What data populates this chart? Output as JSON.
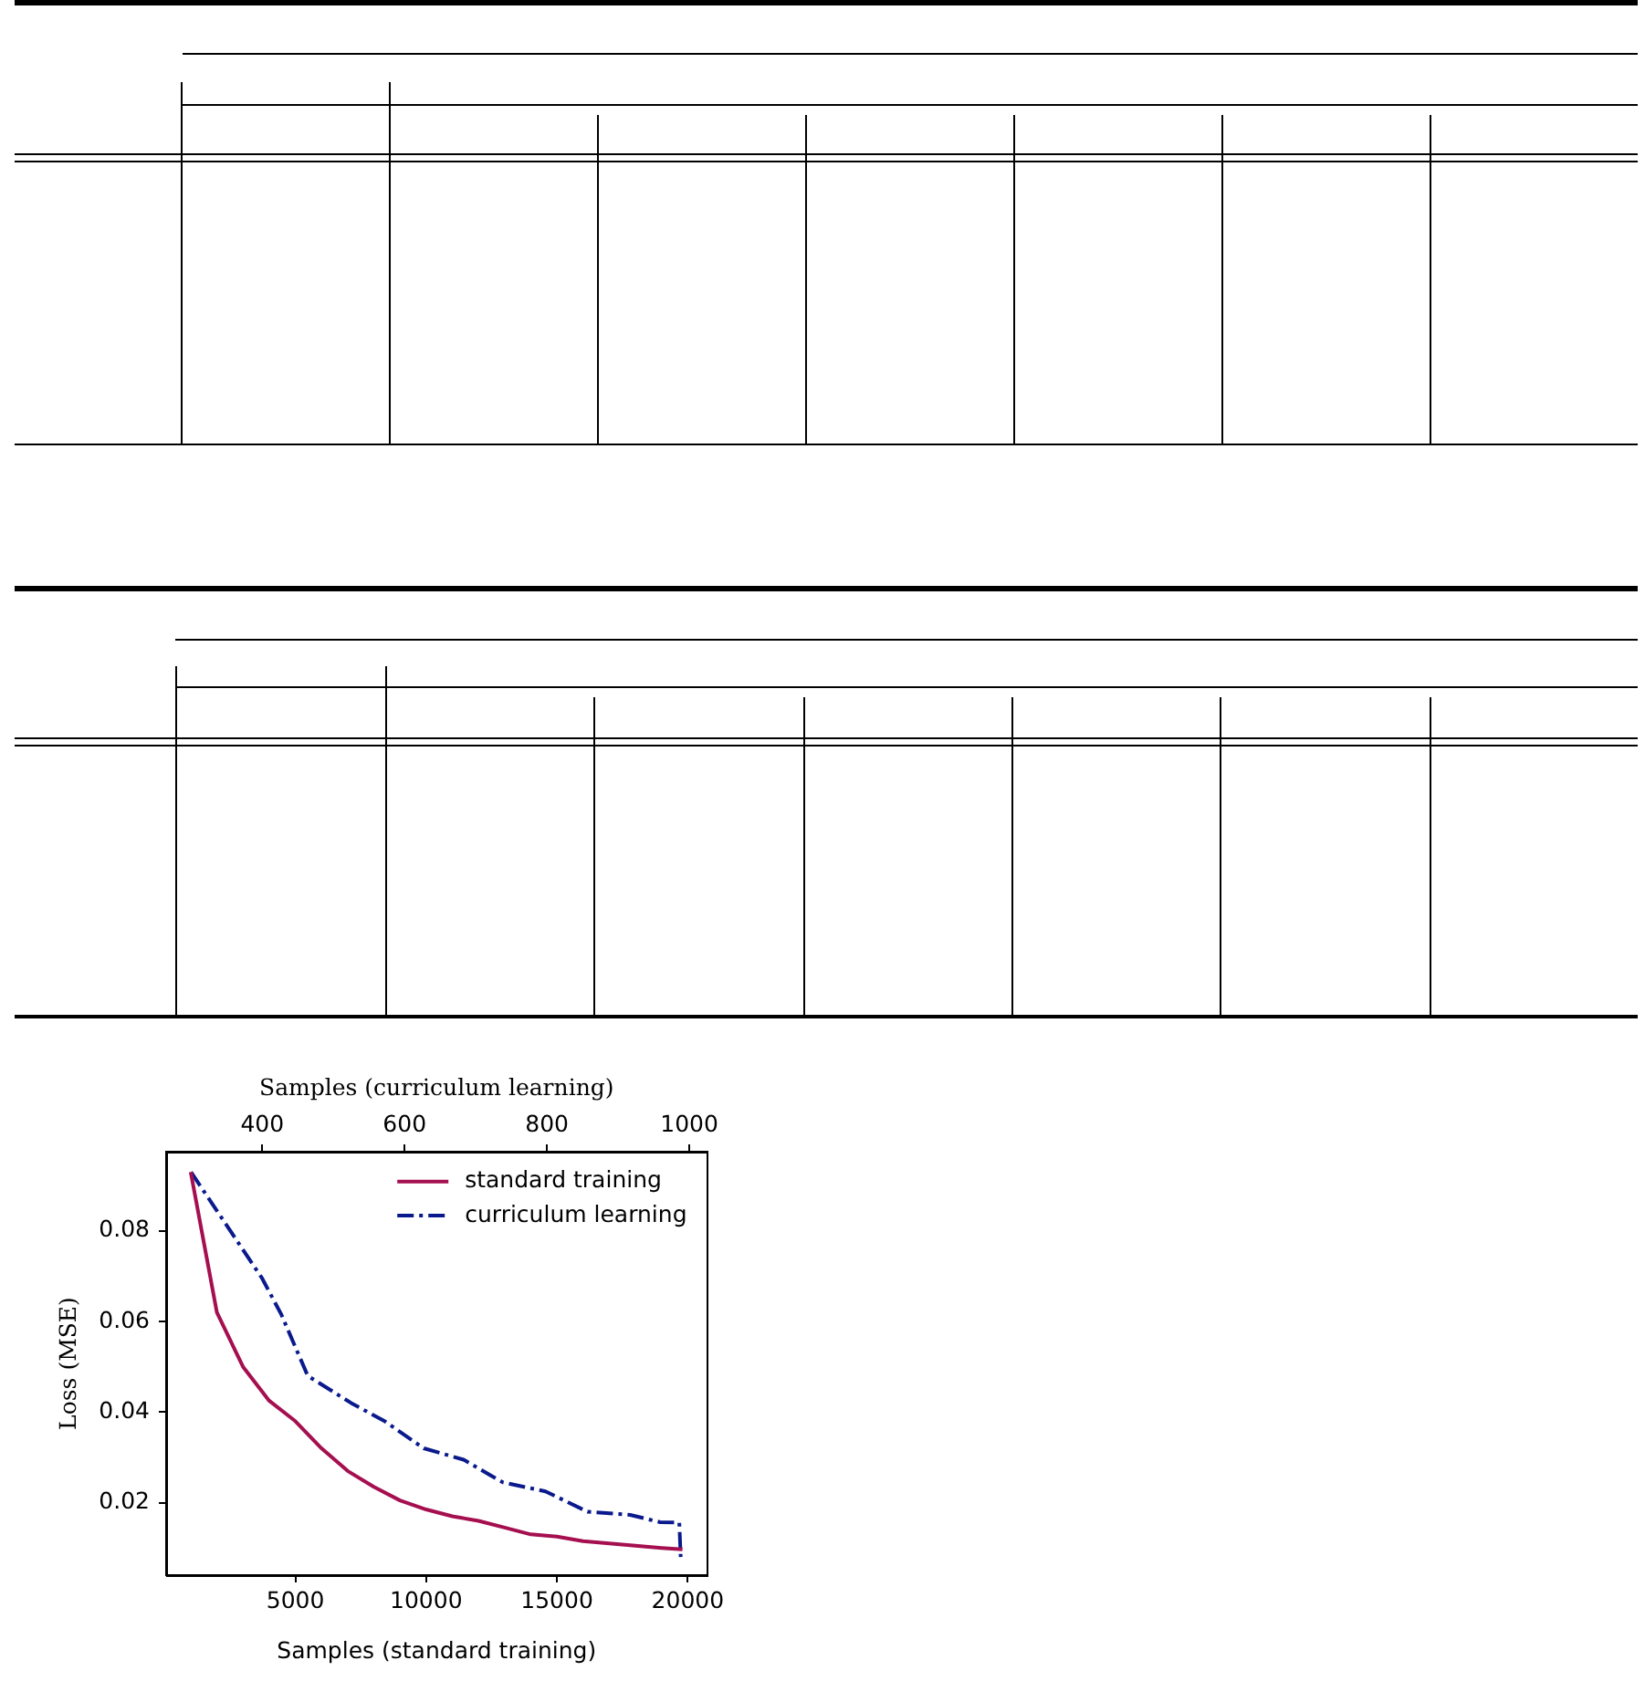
{
  "chart_data": {
    "type": "line",
    "xlabel": "Samples (standard training)",
    "x2label": "Samples (curriculum learning)",
    "ylabel": "Loss (MSE)",
    "xlim": [
      60,
      20740
    ],
    "xticks": [
      5000,
      10000,
      15000,
      20000
    ],
    "x2lim": [
      265,
      1025
    ],
    "x2ticks": [
      400,
      600,
      800,
      1000
    ],
    "ylim": [
      0.004,
      0.0975
    ],
    "yticks": [
      0.02,
      0.04,
      0.06,
      0.08
    ],
    "legend": "top right",
    "series": [
      {
        "name": "standard training",
        "color": "#a50f50",
        "line_style": "solid",
        "x": [
          1000,
          2000,
          3000,
          4000,
          5000,
          6000,
          7000,
          8000,
          9000,
          10000,
          11000,
          12000,
          13000,
          14000,
          15000,
          16000,
          17000,
          18000,
          19000,
          19800
        ],
        "values": [
          0.093,
          0.062,
          0.05,
          0.0425,
          0.038,
          0.032,
          0.027,
          0.0235,
          0.0205,
          0.0185,
          0.017,
          0.016,
          0.0145,
          0.013,
          0.0125,
          0.0115,
          0.011,
          0.0105,
          0.01,
          0.0097
        ]
      },
      {
        "name": "curriculum learning",
        "color": "#0a1a8c",
        "line_style": "dashdot",
        "axis": "x2",
        "x": [
          300,
          400,
          427,
          464,
          525,
          572,
          627,
          683,
          721,
          738,
          798,
          857,
          917,
          959,
          986,
          988
        ],
        "values": [
          0.093,
          0.0695,
          0.0615,
          0.048,
          0.042,
          0.038,
          0.032,
          0.0295,
          0.026,
          0.0245,
          0.0225,
          0.018,
          0.0173,
          0.0157,
          0.0156,
          0.008
        ]
      }
    ]
  }
}
